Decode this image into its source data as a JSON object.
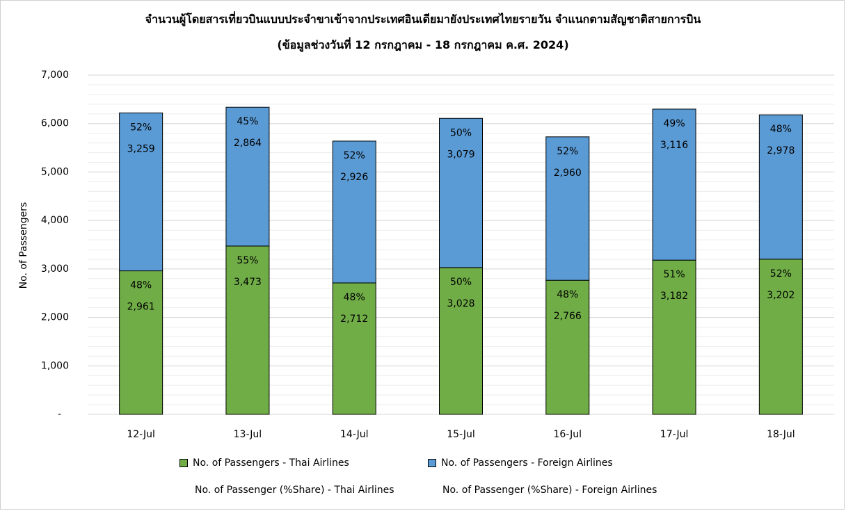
{
  "chart_data": {
    "type": "bar",
    "stacked": true,
    "title": "จำนวนผู้โดยสารเที่ยวบินแบบประจำขาเข้าจากประเทศอินเดียมายังประเทศไทยรายวัน  จำแนกตามสัญชาติสายการบิน",
    "subtitle": "(ข้อมูลช่วงวันที่ 12 กรกฎาคม - 18 กรกฎาคม ค.ศ. 2024)",
    "xlabel": "",
    "ylabel": "No. of Passengers",
    "ylim": [
      0,
      7000
    ],
    "yticks": [
      0,
      1000,
      2000,
      3000,
      4000,
      5000,
      6000,
      7000
    ],
    "ytick_labels": [
      "-",
      "1,000",
      "2,000",
      "3,000",
      "4,000",
      "5,000",
      "6,000",
      "7,000"
    ],
    "grid": true,
    "categories": [
      "12-Jul",
      "13-Jul",
      "14-Jul",
      "15-Jul",
      "16-Jul",
      "17-Jul",
      "18-Jul"
    ],
    "series": [
      {
        "name": "No. of Passengers - Thai Airlines",
        "color": "#70ad47",
        "values": [
          2961,
          3473,
          2712,
          3028,
          2766,
          3182,
          3202
        ],
        "value_labels": [
          "2,961",
          "3,473",
          "2,712",
          "3,028",
          "2,766",
          "3,182",
          "3,202"
        ],
        "share_labels": [
          "48%",
          "55%",
          "48%",
          "50%",
          "48%",
          "51%",
          "52%"
        ]
      },
      {
        "name": "No. of Passengers - Foreign Airlines",
        "color": "#5b9bd5",
        "values": [
          3259,
          2864,
          2926,
          3079,
          2960,
          3116,
          2978
        ],
        "value_labels": [
          "3,259",
          "2,864",
          "2,926",
          "3,079",
          "2,960",
          "3,116",
          "2,978"
        ],
        "share_labels": [
          "52%",
          "45%",
          "52%",
          "50%",
          "52%",
          "49%",
          "48%"
        ]
      }
    ],
    "legend": {
      "placement": "bottom",
      "share_thai": "No. of Passenger (%Share) - Thai Airlines",
      "share_foreign": "No. of Passenger (%Share) - Foreign Airlines"
    }
  }
}
